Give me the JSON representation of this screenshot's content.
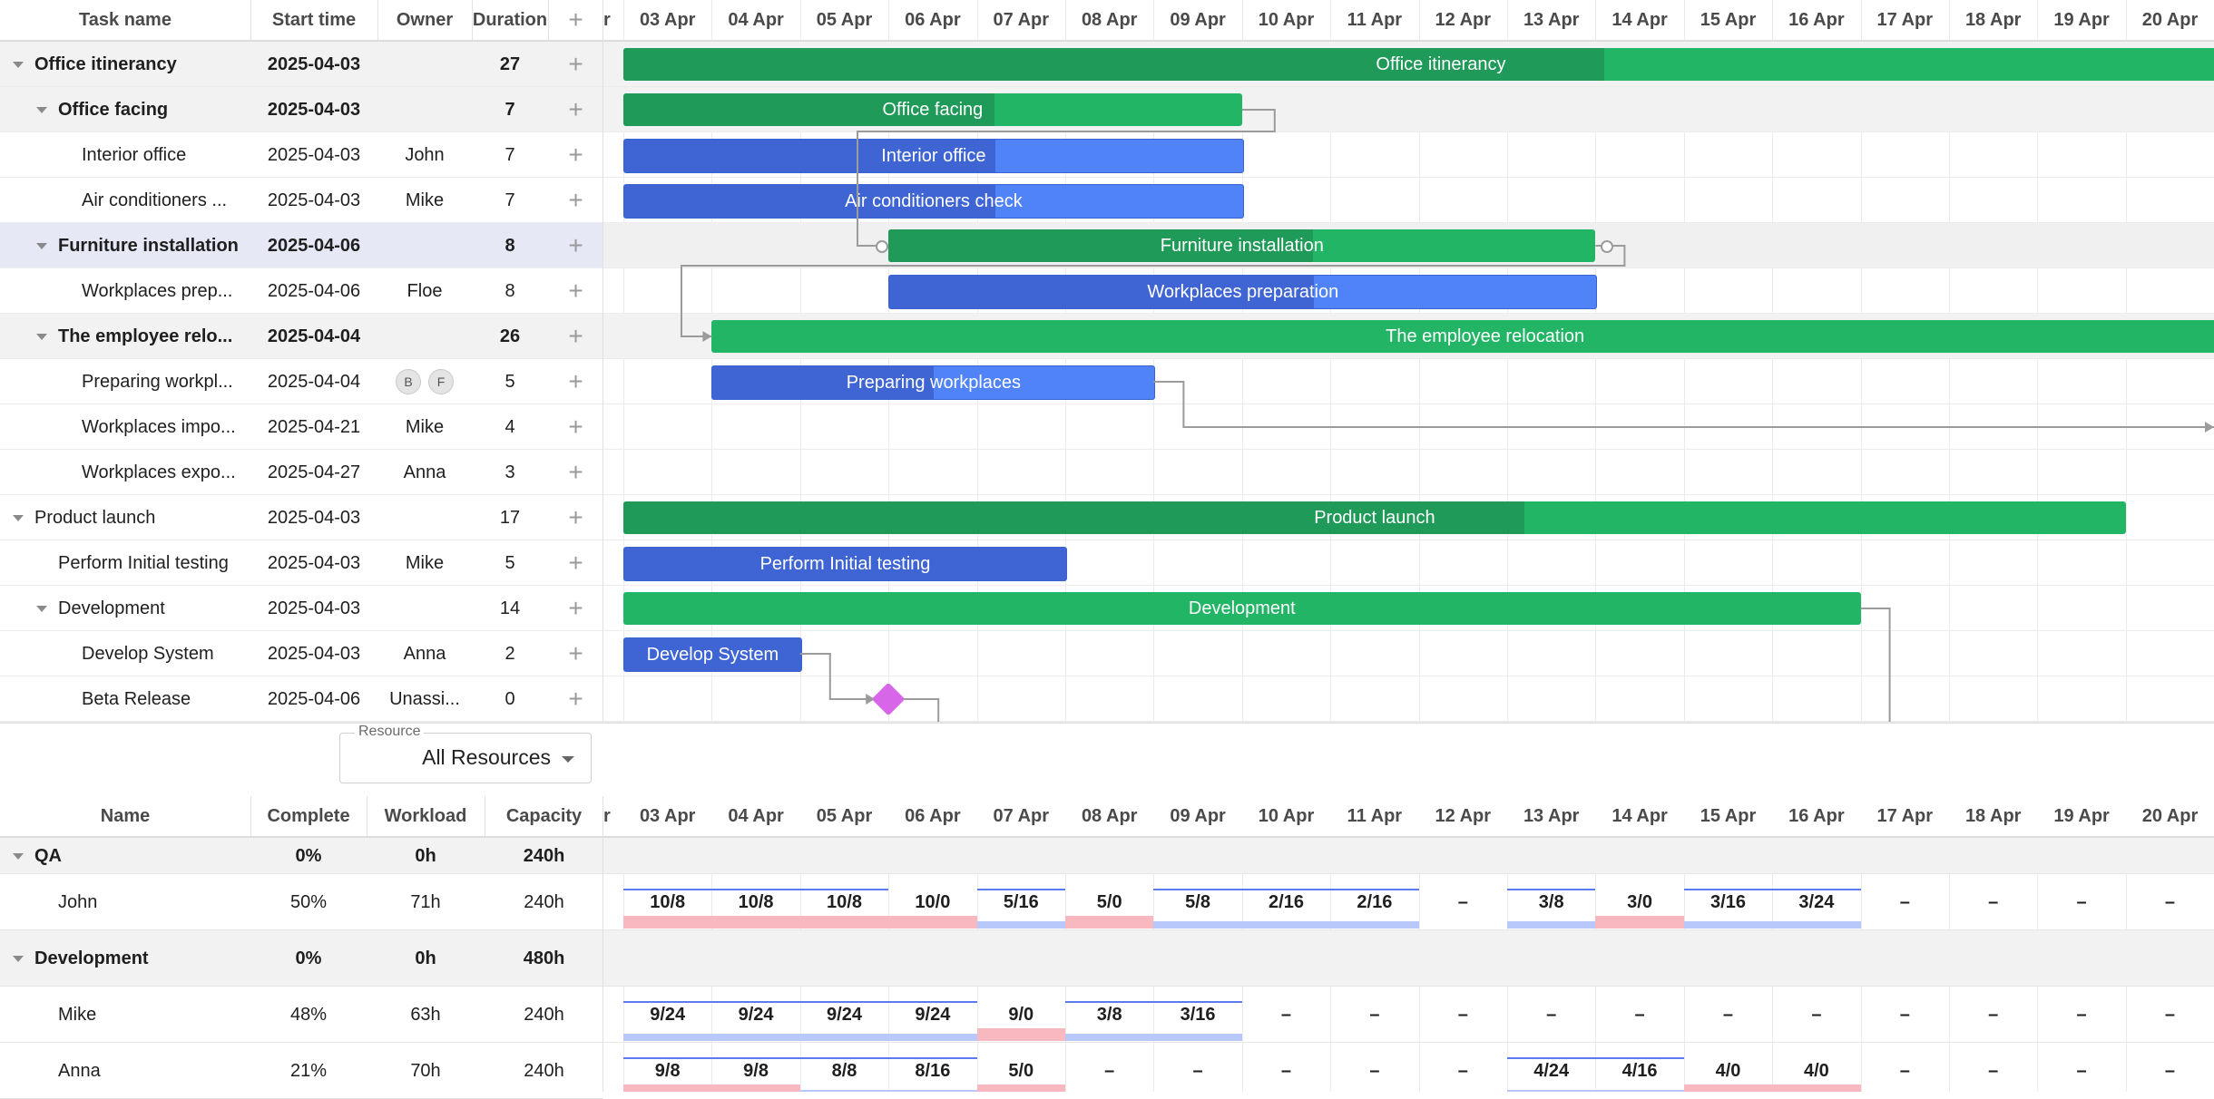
{
  "gantt": {
    "columns": {
      "task_name": "Task name",
      "start_time": "Start time",
      "owner": "Owner",
      "duration": "Duration",
      "add": "+"
    },
    "dates": [
      "03 Apr",
      "04 Apr",
      "05 Apr",
      "06 Apr",
      "07 Apr",
      "08 Apr",
      "09 Apr",
      "10 Apr",
      "11 Apr",
      "12 Apr",
      "13 Apr",
      "14 Apr",
      "15 Apr",
      "16 Apr",
      "17 Apr",
      "18 Apr",
      "19 Apr",
      "20 Apr"
    ],
    "tasks": [
      {
        "name": "Office itinerancy",
        "start": "2025-04-03",
        "owner": "",
        "duration": "27",
        "bar_label": "Office itinerancy",
        "level": 0,
        "parent": true,
        "bold": true,
        "bar_start": 0,
        "bar_days": 18.5,
        "progress": 0.6,
        "type": "project"
      },
      {
        "name": "Office facing",
        "start": "2025-04-03",
        "owner": "",
        "duration": "7",
        "bar_label": "Office facing",
        "level": 1,
        "parent": true,
        "bold": true,
        "bar_start": 0,
        "bar_days": 7,
        "progress": 0.6,
        "type": "project"
      },
      {
        "name": "Interior office",
        "start": "2025-04-03",
        "owner": "John",
        "duration": "7",
        "bar_label": "Interior office",
        "level": 2,
        "parent": false,
        "bold": false,
        "bar_start": 0,
        "bar_days": 7,
        "progress": 0.6,
        "type": "task"
      },
      {
        "name": "Air conditioners ...",
        "start": "2025-04-03",
        "owner": "Mike",
        "duration": "7",
        "bar_label": "Air conditioners check",
        "level": 2,
        "parent": false,
        "bold": false,
        "bar_start": 0,
        "bar_days": 7,
        "progress": 0.6,
        "type": "task"
      },
      {
        "name": "Furniture installation",
        "start": "2025-04-06",
        "owner": "",
        "duration": "8",
        "bar_label": "Furniture installation",
        "level": 1,
        "parent": true,
        "bold": true,
        "bar_start": 3,
        "bar_days": 8,
        "progress": 0.6,
        "type": "project",
        "selected": true
      },
      {
        "name": "Workplaces prep...",
        "start": "2025-04-06",
        "owner": "Floe",
        "duration": "8",
        "bar_label": "Workplaces preparation",
        "level": 2,
        "parent": false,
        "bold": false,
        "bar_start": 3,
        "bar_days": 8,
        "progress": 0.6,
        "type": "task"
      },
      {
        "name": "The employee relo...",
        "start": "2025-04-04",
        "owner": "",
        "duration": "26",
        "bar_label": "The employee relocation",
        "level": 1,
        "parent": true,
        "bold": true,
        "bar_start": 1,
        "bar_days": 17.5,
        "progress": 0.0,
        "type": "project"
      },
      {
        "name": "Preparing workpl...",
        "start": "2025-04-04",
        "owner": "",
        "owners": [
          "B",
          "F"
        ],
        "duration": "5",
        "bar_label": "Preparing workplaces",
        "level": 2,
        "parent": false,
        "bold": false,
        "bar_start": 1,
        "bar_days": 5,
        "progress": 0.5,
        "type": "task"
      },
      {
        "name": "Workplaces impo...",
        "start": "2025-04-21",
        "owner": "Mike",
        "duration": "4",
        "bar_label": "",
        "level": 2,
        "parent": false,
        "bold": false,
        "type": "none"
      },
      {
        "name": "Workplaces expo...",
        "start": "2025-04-27",
        "owner": "Anna",
        "duration": "3",
        "bar_label": "",
        "level": 2,
        "parent": false,
        "bold": false,
        "type": "none"
      },
      {
        "name": "Product launch",
        "start": "2025-04-03",
        "owner": "",
        "duration": "17",
        "bar_label": "Product launch",
        "level": 0,
        "parent": true,
        "bold": false,
        "bar_start": 0,
        "bar_days": 17,
        "progress": 0.6,
        "type": "project"
      },
      {
        "name": "Perform Initial testing",
        "start": "2025-04-03",
        "owner": "Mike",
        "duration": "5",
        "bar_label": "Perform Initial testing",
        "level": 1,
        "parent": false,
        "bold": false,
        "bar_start": 0,
        "bar_days": 5,
        "progress": 1.0,
        "type": "task"
      },
      {
        "name": "Development",
        "start": "2025-04-03",
        "owner": "",
        "duration": "14",
        "bar_label": "Development",
        "level": 1,
        "parent": true,
        "bold": false,
        "bar_start": 0,
        "bar_days": 14,
        "progress": 0.0,
        "type": "project"
      },
      {
        "name": "Develop System",
        "start": "2025-04-03",
        "owner": "Anna",
        "duration": "2",
        "bar_label": "Develop System",
        "level": 2,
        "parent": false,
        "bold": false,
        "bar_start": 0,
        "bar_days": 2,
        "progress": 1.0,
        "type": "task"
      },
      {
        "name": "Beta Release",
        "start": "2025-04-06",
        "owner": "Unassi...",
        "duration": "0",
        "bar_label": "",
        "level": 2,
        "parent": false,
        "bold": false,
        "bar_start": 3,
        "type": "milestone"
      }
    ]
  },
  "resource_filter": {
    "label": "Resource",
    "value": "All Resources"
  },
  "resources": {
    "columns": {
      "name": "Name",
      "complete": "Complete",
      "workload": "Workload",
      "capacity": "Capacity"
    },
    "rows": [
      {
        "name": "QA",
        "complete": "0%",
        "workload": "0h",
        "capacity": "240h",
        "group": true,
        "cells": []
      },
      {
        "name": "John",
        "complete": "50%",
        "workload": "71h",
        "capacity": "240h",
        "group": false,
        "cells": [
          "10/8",
          "10/8",
          "10/8",
          "10/0",
          "5/16",
          "5/0",
          "5/8",
          "2/16",
          "2/16",
          "–",
          "3/8",
          "3/0",
          "3/16",
          "3/24",
          "–",
          "–",
          "–",
          "–"
        ]
      },
      {
        "name": "Development",
        "complete": "0%",
        "workload": "0h",
        "capacity": "480h",
        "group": true,
        "cells": []
      },
      {
        "name": "Mike",
        "complete": "48%",
        "workload": "63h",
        "capacity": "240h",
        "group": false,
        "cells": [
          "9/24",
          "9/24",
          "9/24",
          "9/24",
          "9/0",
          "3/8",
          "3/16",
          "–",
          "–",
          "–",
          "–",
          "–",
          "–",
          "–",
          "–",
          "–",
          "–",
          "–"
        ]
      },
      {
        "name": "Anna",
        "complete": "21%",
        "workload": "70h",
        "capacity": "240h",
        "group": false,
        "cells": [
          "9/8",
          "9/8",
          "8/8",
          "8/16",
          "5/0",
          "–",
          "–",
          "–",
          "–",
          "–",
          "4/24",
          "4/16",
          "4/0",
          "4/0",
          "–",
          "–",
          "–",
          "–"
        ]
      }
    ]
  },
  "colors": {
    "project": "#22b566",
    "project_progress": "#1f9a58",
    "task": "#4f83f7",
    "task_progress": "#3f65d4",
    "milestone": "#d766e8",
    "overload": "#f7b8c0",
    "load": "#b9c8fa"
  }
}
